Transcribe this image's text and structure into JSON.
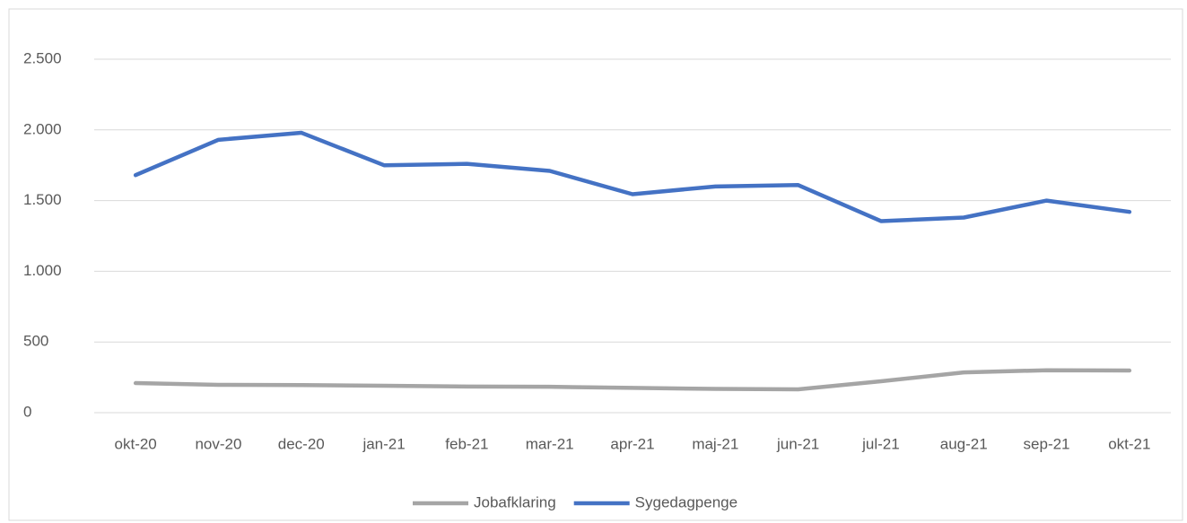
{
  "chart_data": {
    "type": "line",
    "categories": [
      "okt-20",
      "nov-20",
      "dec-20",
      "jan-21",
      "feb-21",
      "mar-21",
      "apr-21",
      "maj-21",
      "jun-21",
      "jul-21",
      "aug-21",
      "sep-21",
      "okt-21"
    ],
    "series": [
      {
        "name": "Jobafklaring",
        "color": "#a5a5a5",
        "values": [
          209,
          197,
          195,
          190,
          185,
          183,
          175,
          168,
          165,
          222,
          285,
          300,
          298
        ]
      },
      {
        "name": "Sygedagpenge",
        "color": "#4472c4",
        "values": [
          1680,
          1930,
          1980,
          1750,
          1760,
          1710,
          1545,
          1600,
          1610,
          1355,
          1380,
          1500,
          1420
        ]
      }
    ],
    "ylim": [
      0,
      2500
    ],
    "yticks": [
      0,
      500,
      {
        "value": 1000,
        "label": "1.000"
      },
      {
        "value": 1500,
        "label": "1.500"
      },
      {
        "value": 2000,
        "label": "2.000"
      },
      {
        "value": 2500,
        "label": "2.500"
      }
    ],
    "grid": true,
    "legend": "bottom"
  }
}
